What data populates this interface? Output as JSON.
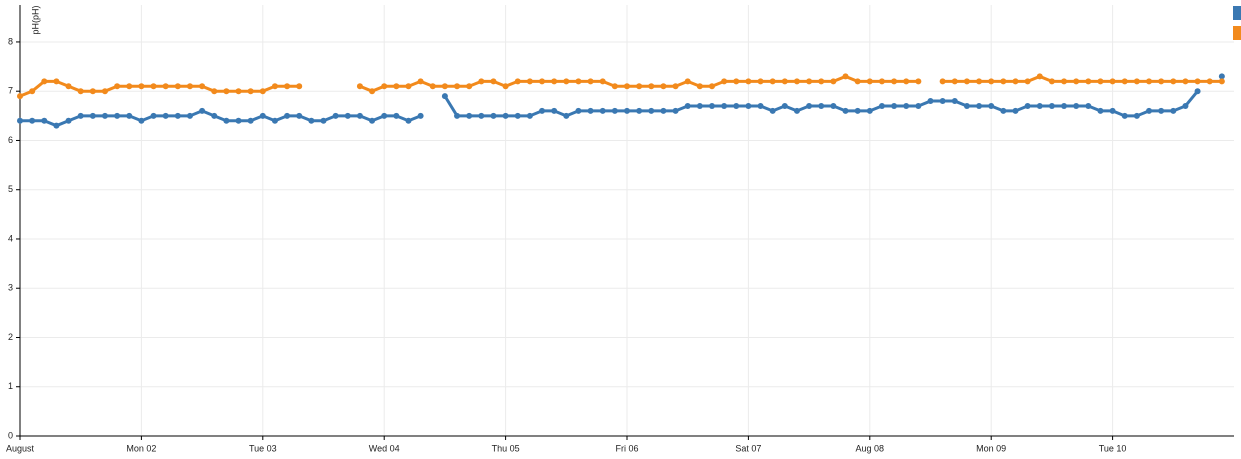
{
  "chart_data": {
    "type": "line",
    "y_label": "pH(pH)",
    "x": [
      0,
      0.1,
      0.2,
      0.3,
      0.4,
      0.5,
      0.6,
      0.7,
      0.8,
      0.9,
      1,
      1.1,
      1.2,
      1.3,
      1.4,
      1.5,
      1.6,
      1.7,
      1.8,
      1.9,
      2,
      2.1,
      2.2,
      2.3,
      2.4,
      2.5,
      2.6,
      2.7,
      2.8,
      2.9,
      3,
      3.1,
      3.2,
      3.3,
      3.4,
      3.5,
      3.6,
      3.7,
      3.8,
      3.9,
      4,
      4.1,
      4.2,
      4.3,
      4.4,
      4.5,
      4.6,
      4.7,
      4.8,
      4.9,
      5,
      5.1,
      5.2,
      5.3,
      5.4,
      5.5,
      5.6,
      5.7,
      5.8,
      5.9,
      6,
      6.1,
      6.2,
      6.3,
      6.4,
      6.5,
      6.6,
      6.7,
      6.8,
      6.9,
      7,
      7.1,
      7.2,
      7.3,
      7.4,
      7.5,
      7.6,
      7.7,
      7.8,
      7.9,
      8,
      8.1,
      8.2,
      8.3,
      8.4,
      8.5,
      8.6,
      8.7,
      8.8,
      8.9,
      9,
      9.1,
      9.2,
      9.3,
      9.4,
      9.5,
      9.6,
      9.7,
      9.8,
      9.9
    ],
    "series": [
      {
        "color": "#3a78b2",
        "values": [
          6.4,
          6.4,
          6.4,
          6.3,
          6.4,
          6.5,
          6.5,
          6.5,
          6.5,
          6.5,
          6.4,
          6.5,
          6.5,
          6.5,
          6.5,
          6.6,
          6.5,
          6.4,
          6.4,
          6.4,
          6.5,
          6.4,
          6.5,
          6.5,
          6.4,
          6.4,
          6.5,
          6.5,
          6.5,
          6.4,
          6.5,
          6.5,
          6.4,
          6.5,
          null,
          6.9,
          6.5,
          6.5,
          6.5,
          6.5,
          6.5,
          6.5,
          6.5,
          6.6,
          6.6,
          6.5,
          6.6,
          6.6,
          6.6,
          6.6,
          6.6,
          6.6,
          6.6,
          6.6,
          6.6,
          6.7,
          6.7,
          6.7,
          6.7,
          6.7,
          6.7,
          6.7,
          6.6,
          6.7,
          6.6,
          6.7,
          6.7,
          6.7,
          6.6,
          6.6,
          6.6,
          6.7,
          6.7,
          6.7,
          6.7,
          6.8,
          6.8,
          6.8,
          6.7,
          6.7,
          6.7,
          6.6,
          6.6,
          6.7,
          6.7,
          6.7,
          6.7,
          6.7,
          6.7,
          6.6,
          6.6,
          6.5,
          6.5,
          6.6,
          6.6,
          6.6,
          6.7,
          7.0,
          null,
          7.3
        ]
      },
      {
        "color": "#f28a1c",
        "values": [
          6.9,
          7.0,
          7.2,
          7.2,
          7.1,
          7.0,
          7.0,
          7.0,
          7.1,
          7.1,
          7.1,
          7.1,
          7.1,
          7.1,
          7.1,
          7.1,
          7.0,
          7.0,
          7.0,
          7.0,
          7.0,
          7.1,
          7.1,
          7.1,
          null,
          null,
          null,
          null,
          7.1,
          7.0,
          7.1,
          7.1,
          7.1,
          7.2,
          7.1,
          7.1,
          7.1,
          7.1,
          7.2,
          7.2,
          7.1,
          7.2,
          7.2,
          7.2,
          7.2,
          7.2,
          7.2,
          7.2,
          7.2,
          7.1,
          7.1,
          7.1,
          7.1,
          7.1,
          7.1,
          7.2,
          7.1,
          7.1,
          7.2,
          7.2,
          7.2,
          7.2,
          7.2,
          7.2,
          7.2,
          7.2,
          7.2,
          7.2,
          7.3,
          7.2,
          7.2,
          7.2,
          7.2,
          7.2,
          7.2,
          null,
          7.2,
          7.2,
          7.2,
          7.2,
          7.2,
          7.2,
          7.2,
          7.2,
          7.3,
          7.2,
          7.2,
          7.2,
          7.2,
          7.2,
          7.2,
          7.2,
          7.2,
          7.2,
          7.2,
          7.2,
          7.2,
          7.2,
          7.2,
          7.2
        ]
      }
    ],
    "xlim": [
      0,
      10
    ],
    "xticks": [
      {
        "value": 0,
        "label": "August"
      },
      {
        "value": 1,
        "label": "Mon 02"
      },
      {
        "value": 2,
        "label": "Tue 03"
      },
      {
        "value": 3,
        "label": "Wed 04"
      },
      {
        "value": 4,
        "label": "Thu 05"
      },
      {
        "value": 5,
        "label": "Fri 06"
      },
      {
        "value": 6,
        "label": "Sat 07"
      },
      {
        "value": 7,
        "label": "Aug 08"
      },
      {
        "value": 8,
        "label": "Mon 09"
      },
      {
        "value": 9,
        "label": "Tue 10"
      }
    ],
    "ylim": [
      0,
      8.75
    ],
    "yticks": [
      0,
      1,
      2,
      3,
      4,
      5,
      6,
      7,
      8
    ],
    "grid": true,
    "legend": "top-right"
  }
}
